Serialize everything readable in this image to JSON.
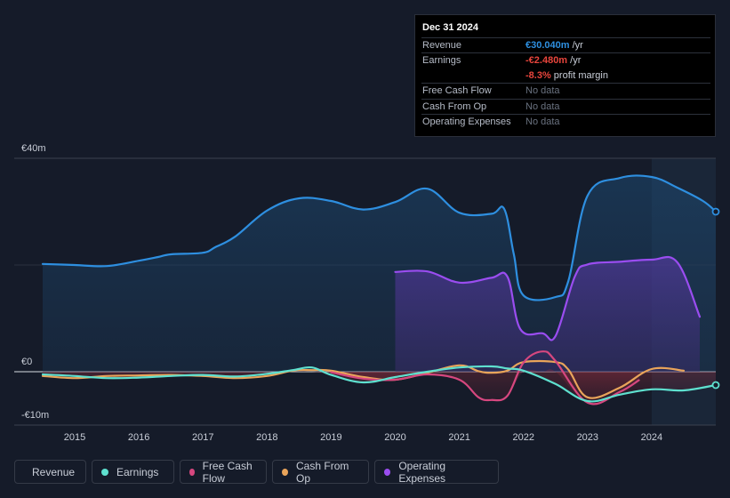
{
  "tooltip": {
    "date": "Dec 31 2024",
    "rows": [
      {
        "label": "Revenue",
        "value": "€30.040m",
        "unit": " /yr"
      },
      {
        "label": "Earnings",
        "value": "-€2.480m",
        "unit": " /yr"
      },
      {
        "label": "",
        "value": "-8.3%",
        "unit": " profit margin"
      },
      {
        "label": "Free Cash Flow",
        "value": "No data"
      },
      {
        "label": "Cash From Op",
        "value": "No data"
      },
      {
        "label": "Operating Expenses",
        "value": "No data"
      }
    ]
  },
  "legend": [
    {
      "label": "Revenue",
      "color": "#2e8fe0"
    },
    {
      "label": "Earnings",
      "color": "#5ee0cf"
    },
    {
      "label": "Free Cash Flow",
      "color": "#d6477f"
    },
    {
      "label": "Cash From Op",
      "color": "#e9a45a"
    },
    {
      "label": "Operating Expenses",
      "color": "#9a4df0"
    }
  ],
  "chart_data": {
    "type": "area",
    "title": "",
    "xlabel": "",
    "ylabel": "",
    "ylim": [
      -10,
      40
    ],
    "xlim": [
      2014.0,
      2025.0
    ],
    "y_tick_labels": [
      "€40m",
      "€0",
      "-€10m"
    ],
    "x_tick_labels": [
      "2015",
      "2016",
      "2017",
      "2018",
      "2019",
      "2020",
      "2021",
      "2022",
      "2023",
      "2024"
    ],
    "x_ticks": [
      2015,
      2016,
      2017,
      2018,
      2019,
      2020,
      2021,
      2022,
      2023,
      2024
    ],
    "highlight_from": 2024.0,
    "series": [
      {
        "name": "Revenue",
        "color": "#2e8fe0",
        "x": [
          2014.5,
          2015.0,
          2015.5,
          2016.0,
          2016.3,
          2016.5,
          2017.0,
          2017.2,
          2017.5,
          2018.0,
          2018.5,
          2019.0,
          2019.5,
          2020.0,
          2020.5,
          2021.0,
          2021.5,
          2021.7,
          2021.85,
          2022.0,
          2022.5,
          2022.7,
          2023.0,
          2023.5,
          2024.0,
          2024.4,
          2024.8,
          2025.0
        ],
        "y": [
          20.2,
          20.0,
          19.8,
          20.8,
          21.5,
          22.0,
          22.3,
          23.4,
          25.3,
          30.2,
          32.5,
          32.0,
          30.4,
          31.8,
          34.3,
          29.8,
          29.6,
          30.5,
          22.0,
          14.3,
          14.0,
          17.0,
          33.0,
          36.3,
          36.5,
          34.5,
          32.0,
          30.0
        ]
      },
      {
        "name": "Operating Expenses",
        "color": "#9a4df0",
        "x": [
          2020.0,
          2020.5,
          2021.0,
          2021.5,
          2021.75,
          2021.95,
          2022.3,
          2022.5,
          2022.8,
          2023.0,
          2023.5,
          2024.0,
          2024.4,
          2024.75
        ],
        "y": [
          18.7,
          18.8,
          16.7,
          17.6,
          17.8,
          8.0,
          7.2,
          6.7,
          17.8,
          20.1,
          20.6,
          21.0,
          20.5,
          10.3
        ]
      },
      {
        "name": "Earnings",
        "color": "#5ee0cf",
        "x": [
          2014.5,
          2015.0,
          2015.5,
          2016.0,
          2016.5,
          2017.0,
          2017.5,
          2018.0,
          2018.4,
          2018.7,
          2019.0,
          2019.5,
          2020.0,
          2020.5,
          2021.0,
          2021.5,
          2021.75,
          2022.0,
          2022.5,
          2023.0,
          2023.5,
          2024.0,
          2024.5,
          2025.0
        ],
        "y": [
          -0.5,
          -0.8,
          -1.2,
          -1.1,
          -0.8,
          -0.6,
          -0.9,
          -0.4,
          0.3,
          0.8,
          -0.6,
          -2.0,
          -1.0,
          0.0,
          0.8,
          1.0,
          0.6,
          0.2,
          -2.3,
          -5.5,
          -4.3,
          -3.3,
          -3.5,
          -2.5
        ]
      },
      {
        "name": "Free Cash Flow",
        "color": "#d6477f",
        "x": [
          2019.0,
          2019.5,
          2020.0,
          2020.5,
          2021.0,
          2021.3,
          2021.5,
          2021.75,
          2022.0,
          2022.3,
          2022.5,
          2023.0,
          2023.5,
          2023.8
        ],
        "y": [
          -0.1,
          -1.3,
          -1.5,
          -0.5,
          -1.5,
          -4.8,
          -5.3,
          -4.5,
          1.7,
          3.8,
          2.0,
          -5.8,
          -3.8,
          -1.6
        ]
      },
      {
        "name": "Cash From Op",
        "color": "#e9a45a",
        "x": [
          2014.5,
          2015.0,
          2015.5,
          2016.0,
          2016.5,
          2017.0,
          2017.5,
          2018.0,
          2018.4,
          2018.7,
          2019.0,
          2019.5,
          2020.0,
          2020.5,
          2021.0,
          2021.3,
          2021.5,
          2021.75,
          2022.0,
          2022.5,
          2022.7,
          2023.0,
          2023.5,
          2024.0,
          2024.5
        ],
        "y": [
          -0.8,
          -1.2,
          -0.8,
          -0.7,
          -0.6,
          -0.8,
          -1.2,
          -0.8,
          0.2,
          0.3,
          0.2,
          -1.0,
          -1.5,
          -0.2,
          1.2,
          0.1,
          -0.2,
          0.2,
          1.8,
          1.8,
          0.4,
          -4.8,
          -3.0,
          0.5,
          0.2
        ]
      }
    ]
  }
}
